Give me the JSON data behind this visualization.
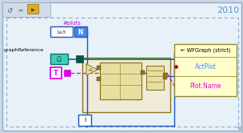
{
  "bg_color": "#c8d8e8",
  "panel_bg": "#e8f0f8",
  "panel_edge": "#99aabb",
  "dashed_edge": "#88aacc",
  "year_text": "2010",
  "year_color": "#5599cc",
  "year_fontsize": 8,
  "toolbar_bg": "#d0dce8",
  "plots_label": "#plots",
  "plots_label_color": "#cc00cc",
  "plots_box_text": "1a3:",
  "N_text": "N",
  "N_bg": "#4488ee",
  "graphRef_label": "graphReference",
  "graphRef_box_color": "#44ccbb",
  "graphRef_box_edge": "#007766",
  "graphRef_connector_color": "#005544",
  "T_text": "T",
  "T_border_color": "#ee00ee",
  "teal_wire_color": "#007766",
  "blue_wire_color": "#2255bb",
  "magenta_wire_color": "#dd00dd",
  "wfg_bg": "#ffffcc",
  "wfg_edge": "#998833",
  "wfg_title": "← WFGraph (strict)",
  "wfg_actplot": "ActPlot",
  "wfg_actplot_color": "#4488ff",
  "wfg_plotname": "Plot.Name",
  "wfg_plotname_color": "#ee00ee",
  "loop_bg": "#f0ead8",
  "loop_edge": "#887722",
  "incr_arrow_color": "#887722",
  "i_text": "i",
  "red_dot_color": "#cc0000"
}
